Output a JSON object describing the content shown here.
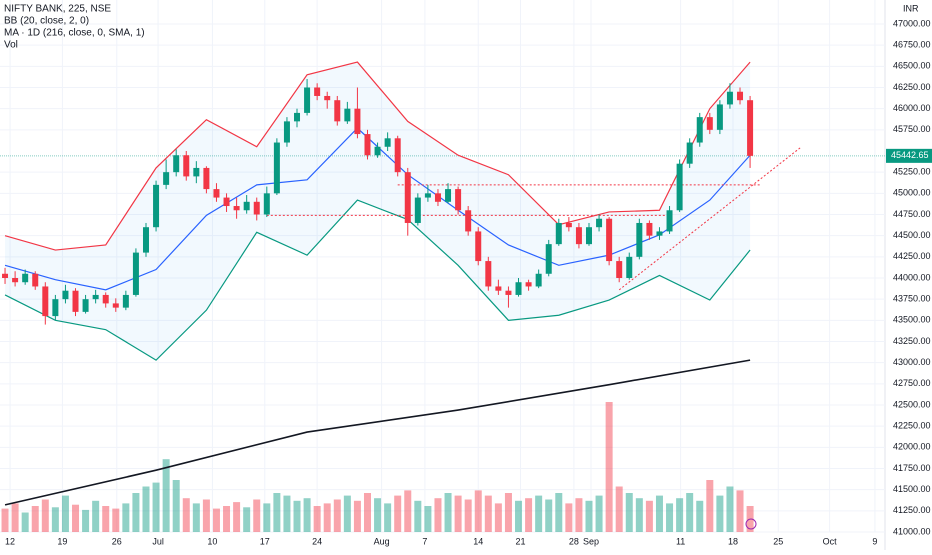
{
  "chart_data": {
    "type": "candlestick",
    "title": "NIFTY BANK, 225, NSE",
    "indicators": [
      "BB (20, close, 2, 0)",
      "MA · 1D (216, close, 0, SMA, 1)",
      "Vol"
    ],
    "currency": "INR",
    "up_color": "#089981",
    "down_color": "#f23645",
    "grid": true,
    "xlim": [
      -0.5,
      87.4
    ],
    "ylim": [
      41000,
      47000
    ],
    "vlim": [
      0,
      100
    ],
    "xticks": [
      {
        "value": 0.5,
        "label": "12"
      },
      {
        "value": 5.7,
        "label": "19"
      },
      {
        "value": 11.1,
        "label": "26"
      },
      {
        "value": 15.2,
        "label": "Jul"
      },
      {
        "value": 20.6,
        "label": "10"
      },
      {
        "value": 25.8,
        "label": "17"
      },
      {
        "value": 31,
        "label": "24"
      },
      {
        "value": 37.4,
        "label": "Aug"
      },
      {
        "value": 41.7,
        "label": "7"
      },
      {
        "value": 47,
        "label": "14"
      },
      {
        "value": 51.2,
        "label": "21"
      },
      {
        "value": 56.5,
        "label": "28"
      },
      {
        "value": 58.2,
        "label": "Sep"
      },
      {
        "value": 67.1,
        "label": "11"
      },
      {
        "value": 72.3,
        "label": "18"
      },
      {
        "value": 76.8,
        "label": "25"
      },
      {
        "value": 81.9,
        "label": "Oct"
      },
      {
        "value": 86.4,
        "label": "9"
      }
    ],
    "yticks": [
      {
        "value": 47000,
        "label": "47000.00"
      },
      {
        "value": 46750,
        "label": "46750.00"
      },
      {
        "value": 46500,
        "label": "46500.00"
      },
      {
        "value": 46250,
        "label": "46250.00"
      },
      {
        "value": 46000,
        "label": "46000.00"
      },
      {
        "value": 45750,
        "label": "45750.00"
      },
      {
        "value": 45250,
        "label": "45250.00"
      },
      {
        "value": 45000,
        "label": "45000.00"
      },
      {
        "value": 44750,
        "label": "44750.00"
      },
      {
        "value": 44500,
        "label": "44500.00"
      },
      {
        "value": 44250,
        "label": "44250.00"
      },
      {
        "value": 44000,
        "label": "44000.00"
      },
      {
        "value": 43750,
        "label": "43750.00"
      },
      {
        "value": 43500,
        "label": "43500.00"
      },
      {
        "value": 43250,
        "label": "43250.00"
      },
      {
        "value": 43000,
        "label": "43000.00"
      },
      {
        "value": 42750,
        "label": "42750.00"
      },
      {
        "value": 42500,
        "label": "42500.00"
      },
      {
        "value": 42250,
        "label": "42250.00"
      },
      {
        "value": 42000,
        "label": "42000.00"
      },
      {
        "value": 41750,
        "label": "41750.00"
      },
      {
        "value": 41500,
        "label": "41500.00"
      },
      {
        "value": 41250,
        "label": "41250.00"
      },
      {
        "value": 41000,
        "label": "41000.00"
      }
    ],
    "candles": [
      [
        44050,
        44120,
        43930,
        44000
      ],
      [
        44000,
        44080,
        43900,
        43950
      ],
      [
        43950,
        44100,
        43920,
        44050
      ],
      [
        44050,
        44080,
        43860,
        43900
      ],
      [
        43900,
        43950,
        43450,
        43550
      ],
      [
        43550,
        43800,
        43500,
        43750
      ],
      [
        43750,
        43920,
        43700,
        43850
      ],
      [
        43850,
        43880,
        43550,
        43600
      ],
      [
        43600,
        43800,
        43580,
        43750
      ],
      [
        43750,
        43860,
        43700,
        43800
      ],
      [
        43800,
        43830,
        43650,
        43700
      ],
      [
        43700,
        43760,
        43600,
        43650
      ],
      [
        43650,
        43850,
        43620,
        43800
      ],
      [
        43800,
        44350,
        43780,
        44300
      ],
      [
        44300,
        44650,
        44250,
        44600
      ],
      [
        44600,
        45150,
        44550,
        45100
      ],
      [
        45100,
        45400,
        45050,
        45250
      ],
      [
        45250,
        45520,
        45200,
        45450
      ],
      [
        45450,
        45500,
        45150,
        45200
      ],
      [
        45200,
        45380,
        45120,
        45300
      ],
      [
        45300,
        45320,
        45000,
        45050
      ],
      [
        45050,
        45120,
        44900,
        44950
      ],
      [
        44950,
        45000,
        44780,
        44850
      ],
      [
        44850,
        44950,
        44700,
        44800
      ],
      [
        44800,
        44980,
        44760,
        44900
      ],
      [
        44900,
        44950,
        44680,
        44750
      ],
      [
        44750,
        45080,
        44720,
        45000
      ],
      [
        45000,
        45650,
        44980,
        45600
      ],
      [
        45600,
        45900,
        45550,
        45850
      ],
      [
        45850,
        46000,
        45780,
        45950
      ],
      [
        45950,
        46350,
        45920,
        46250
      ],
      [
        46250,
        46300,
        46100,
        46150
      ],
      [
        46150,
        46200,
        46000,
        46100
      ],
      [
        46100,
        46150,
        45800,
        45850
      ],
      [
        45850,
        46080,
        45820,
        46000
      ],
      [
        46000,
        46250,
        45650,
        45700
      ],
      [
        45700,
        45750,
        45400,
        45450
      ],
      [
        45450,
        45600,
        45420,
        45550
      ],
      [
        45550,
        45720,
        45500,
        45650
      ],
      [
        45650,
        45680,
        45200,
        45250
      ],
      [
        45250,
        45300,
        44500,
        44650
      ],
      [
        44650,
        45000,
        44620,
        44950
      ],
      [
        44950,
        45100,
        44900,
        45000
      ],
      [
        45000,
        45050,
        44850,
        44900
      ],
      [
        44900,
        45120,
        44880,
        45050
      ],
      [
        45050,
        45080,
        44750,
        44800
      ],
      [
        44800,
        44850,
        44500,
        44550
      ],
      [
        44550,
        44600,
        44150,
        44200
      ],
      [
        44200,
        44250,
        43850,
        43900
      ],
      [
        43900,
        43980,
        43800,
        43850
      ],
      [
        43850,
        43900,
        43650,
        43800
      ],
      [
        43800,
        44000,
        43780,
        43950
      ],
      [
        43950,
        43980,
        43850,
        43900
      ],
      [
        43900,
        44100,
        43880,
        44050
      ],
      [
        44050,
        44450,
        44020,
        44400
      ],
      [
        44400,
        44700,
        44380,
        44650
      ],
      [
        44650,
        44720,
        44550,
        44600
      ],
      [
        44600,
        44650,
        44350,
        44400
      ],
      [
        44400,
        44650,
        44380,
        44600
      ],
      [
        44600,
        44750,
        44550,
        44700
      ],
      [
        44700,
        44720,
        44150,
        44200
      ],
      [
        44200,
        44250,
        43950,
        44000
      ],
      [
        44000,
        44300,
        43980,
        44250
      ],
      [
        44250,
        44700,
        44220,
        44650
      ],
      [
        44650,
        44680,
        44450,
        44500
      ],
      [
        44500,
        44600,
        44450,
        44550
      ],
      [
        44550,
        44850,
        44520,
        44800
      ],
      [
        44800,
        45400,
        44780,
        45350
      ],
      [
        45350,
        45650,
        45300,
        45600
      ],
      [
        45600,
        45950,
        45550,
        45900
      ],
      [
        45900,
        45950,
        45700,
        45750
      ],
      [
        45750,
        46100,
        45700,
        46050
      ],
      [
        46050,
        46300,
        46000,
        46200
      ],
      [
        46200,
        46250,
        46050,
        46100
      ],
      [
        46100,
        46150,
        45300,
        45442.65
      ]
    ],
    "volume": [
      18,
      22,
      15,
      20,
      25,
      19,
      28,
      21,
      17,
      24,
      20,
      18,
      22,
      30,
      35,
      38,
      56,
      40,
      26,
      22,
      25,
      18,
      20,
      23,
      19,
      25,
      22,
      30,
      28,
      24,
      26,
      20,
      22,
      25,
      28,
      24,
      30,
      26,
      22,
      28,
      32,
      24,
      20,
      26,
      30,
      28,
      25,
      32,
      28,
      22,
      30,
      24,
      26,
      28,
      25,
      30,
      22,
      26,
      24,
      28,
      100,
      35,
      30,
      26,
      24,
      28,
      22,
      26,
      30,
      24,
      40,
      28,
      35,
      32,
      20
    ],
    "bands_x": [
      0,
      5,
      10,
      15,
      20,
      25,
      30,
      35,
      40,
      45,
      50,
      55,
      60,
      65,
      70,
      74
    ],
    "bb_upper": {
      "color": "#f23645",
      "values": [
        44500,
        44330,
        44390,
        45300,
        45870,
        45550,
        46400,
        46550,
        45850,
        45450,
        45220,
        44630,
        44780,
        44800,
        46000,
        46550
      ]
    },
    "bb_basis": {
      "color": "#2962ff",
      "values": [
        44150,
        43980,
        43860,
        44100,
        44740,
        45100,
        45160,
        45770,
        45220,
        44800,
        44390,
        44150,
        44270,
        44510,
        44920,
        45450
      ]
    },
    "bb_lower": {
      "color": "#089981",
      "values": [
        43800,
        43500,
        43390,
        43030,
        43620,
        44540,
        44270,
        44920,
        44690,
        44150,
        43500,
        43560,
        43740,
        44030,
        43740,
        44330
      ]
    },
    "ma_x": [
      0,
      15,
      30,
      45,
      60,
      74
    ],
    "ma": {
      "color": "#131722",
      "values": [
        41320,
        41730,
        42180,
        42440,
        42740,
        43030
      ]
    },
    "hlines": [
      {
        "value": 45100,
        "from": 39,
        "to": 75
      },
      {
        "value": 44740,
        "from": 26,
        "to": 66
      }
    ],
    "trendline": {
      "x": [
        61,
        79
      ],
      "y": [
        43860,
        45540
      ]
    },
    "drawing_color": "#f23645"
  }
}
